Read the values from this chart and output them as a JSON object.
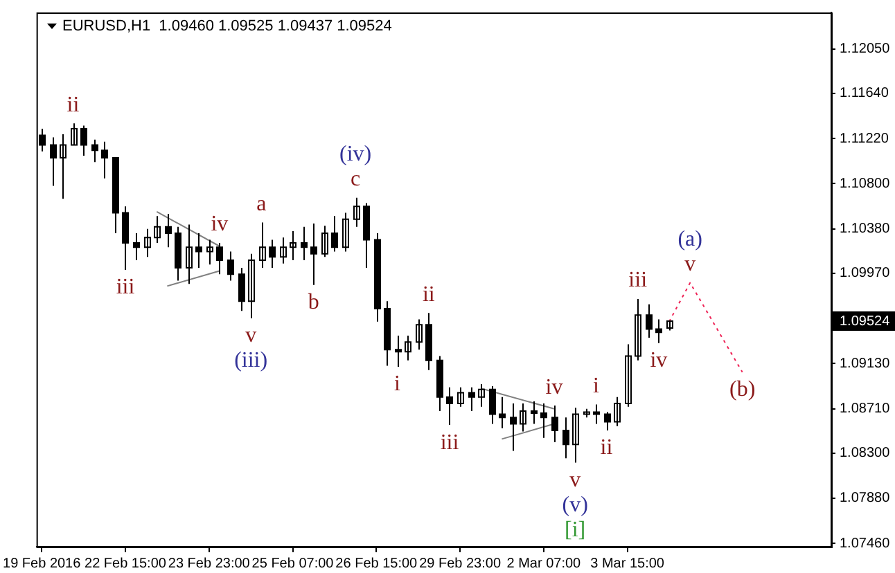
{
  "chart_data": {
    "type": "candlestick",
    "title": "EURUSD,H1  1.09460 1.09525 1.09437 1.09524",
    "color": "#000000",
    "categories": [
      "19 Feb 2016",
      null,
      null,
      null,
      null,
      null,
      null,
      null,
      "22 Feb 15:00",
      null,
      null,
      null,
      null,
      null,
      null,
      null,
      "23 Feb 23:00",
      null,
      null,
      null,
      null,
      null,
      null,
      null,
      "25 Feb 07:00",
      null,
      null,
      null,
      null,
      null,
      null,
      null,
      "26 Feb 15:00",
      null,
      null,
      null,
      null,
      null,
      null,
      null,
      "29 Feb 23:00",
      null,
      null,
      null,
      null,
      null,
      null,
      null,
      "2 Mar 07:00",
      null,
      null,
      null,
      null,
      null,
      null,
      null,
      "3 Mar 15:00",
      null,
      null,
      null,
      null,
      null,
      null,
      null,
      null,
      null,
      null,
      null,
      null,
      null,
      null,
      null,
      null,
      null,
      null,
      null
    ],
    "ohlc": [
      [
        1.1125,
        1.1131,
        1.111,
        1.1116
      ],
      [
        1.1116,
        1.1123,
        1.1078,
        1.1104
      ],
      [
        1.1104,
        1.1126,
        1.1066,
        1.1116
      ],
      [
        1.1116,
        1.1136,
        1.1116,
        1.1131
      ],
      [
        1.1131,
        1.1134,
        1.1106,
        1.1116
      ],
      [
        1.1116,
        1.1121,
        1.11,
        1.1111
      ],
      [
        1.1111,
        1.1119,
        1.1085,
        1.1104
      ],
      [
        1.1104,
        1.1104,
        1.1034,
        1.1053
      ],
      [
        1.1053,
        1.1059,
        1.1,
        1.1025
      ],
      [
        1.1025,
        1.1034,
        1.1009,
        1.1021
      ],
      [
        1.1021,
        1.1038,
        1.1012,
        1.103
      ],
      [
        1.103,
        1.105,
        1.1025,
        1.104
      ],
      [
        1.104,
        1.1052,
        1.1021,
        1.1034
      ],
      [
        1.1034,
        1.104,
        1.099,
        1.1002
      ],
      [
        1.1002,
        1.1042,
        1.0987,
        1.1021
      ],
      [
        1.1021,
        1.1034,
        1.1002,
        1.1017
      ],
      [
        1.1017,
        1.1028,
        1.1005,
        1.1021
      ],
      [
        1.1021,
        1.1025,
        1.0996,
        1.1009
      ],
      [
        1.1009,
        1.1017,
        1.099,
        1.0996
      ],
      [
        1.0996,
        1.1002,
        1.0962,
        1.0971
      ],
      [
        1.0971,
        1.1015,
        1.0955,
        1.1009
      ],
      [
        1.1009,
        1.1044,
        1.1002,
        1.1021
      ],
      [
        1.1021,
        1.1028,
        1.1002,
        1.1012
      ],
      [
        1.1012,
        1.103,
        1.1006,
        1.1021
      ],
      [
        1.1021,
        1.1036,
        1.1009,
        1.1025
      ],
      [
        1.1025,
        1.104,
        1.1009,
        1.1021
      ],
      [
        1.1021,
        1.1043,
        1.0986,
        1.1015
      ],
      [
        1.1015,
        1.1041,
        1.1012,
        1.1034
      ],
      [
        1.1034,
        1.105,
        1.1017,
        1.1021
      ],
      [
        1.1021,
        1.1053,
        1.1017,
        1.1047
      ],
      [
        1.1047,
        1.1067,
        1.104,
        1.1059
      ],
      [
        1.1059,
        1.1062,
        1.1002,
        1.1028
      ],
      [
        1.1028,
        1.1034,
        1.0952,
        1.0964
      ],
      [
        1.0964,
        1.0971,
        1.0911,
        1.0926
      ],
      [
        1.0926,
        1.0939,
        1.091,
        1.0924
      ],
      [
        1.0924,
        1.0939,
        1.0916,
        1.0933
      ],
      [
        1.0933,
        1.0954,
        1.0926,
        1.0949
      ],
      [
        1.0949,
        1.096,
        1.0907,
        1.0916
      ],
      [
        1.0916,
        1.092,
        1.0869,
        1.0882
      ],
      [
        1.0882,
        1.0891,
        1.0856,
        1.0876
      ],
      [
        1.0876,
        1.0891,
        1.0873,
        1.0886
      ],
      [
        1.0886,
        1.0891,
        1.0869,
        1.0882
      ],
      [
        1.0882,
        1.0894,
        1.0873,
        1.0889
      ],
      [
        1.0889,
        1.0892,
        1.0857,
        1.0866
      ],
      [
        1.0866,
        1.0882,
        1.0853,
        1.0863
      ],
      [
        1.0863,
        1.0876,
        1.0832,
        1.0857
      ],
      [
        1.0857,
        1.0876,
        1.085,
        1.0869
      ],
      [
        1.0869,
        1.0878,
        1.0857,
        1.0867
      ],
      [
        1.0867,
        1.0876,
        1.0844,
        1.0863
      ],
      [
        1.0863,
        1.0874,
        1.084,
        1.0851
      ],
      [
        1.0851,
        1.0863,
        1.0825,
        1.0838
      ],
      [
        1.0838,
        1.0872,
        1.0821,
        1.0866
      ],
      [
        1.0866,
        1.0871,
        1.0863,
        1.0868
      ],
      [
        1.0868,
        1.0875,
        1.0857,
        1.0866
      ],
      [
        1.0866,
        1.0868,
        1.0851,
        1.0859
      ],
      [
        1.0859,
        1.0882,
        1.0855,
        1.0876
      ],
      [
        1.0876,
        1.0931,
        1.0873,
        1.092
      ],
      [
        1.092,
        1.0973,
        1.0916,
        1.0958
      ],
      [
        1.0958,
        1.0968,
        1.0937,
        1.0945
      ],
      [
        1.0945,
        1.0954,
        1.0932,
        1.0942
      ],
      [
        1.0946,
        1.09525,
        1.09437,
        1.09524
      ],
      null,
      null,
      null,
      null,
      null,
      null,
      null,
      null,
      null,
      null,
      null,
      null,
      null,
      null,
      null
    ],
    "series": [
      {
        "type": "line",
        "color": "#ee2255",
        "line_style": "dotted",
        "values": [
          null,
          null,
          null,
          null,
          null,
          null,
          null,
          null,
          null,
          null,
          null,
          null,
          null,
          null,
          null,
          null,
          null,
          null,
          null,
          null,
          null,
          null,
          null,
          null,
          null,
          null,
          null,
          null,
          null,
          null,
          null,
          null,
          null,
          null,
          null,
          null,
          null,
          null,
          null,
          null,
          null,
          null,
          null,
          null,
          null,
          null,
          null,
          null,
          null,
          null,
          null,
          null,
          null,
          null,
          null,
          null,
          null,
          null,
          null,
          null,
          1.0952,
          null,
          1.0988,
          null,
          null,
          null,
          null,
          1.0905,
          null,
          null,
          null,
          null,
          null,
          null,
          null,
          null
        ]
      },
      {
        "type": "line",
        "color": "#808080",
        "line_style": "solid",
        "values": [
          null,
          null,
          null,
          null,
          null,
          null,
          null,
          null,
          null,
          null,
          null,
          1.1054,
          null,
          null,
          null,
          null,
          null,
          1.1022,
          null,
          null,
          null,
          null,
          null,
          null,
          null,
          null,
          null,
          null,
          null,
          null,
          null,
          null,
          null,
          null,
          null,
          null,
          null,
          null,
          null,
          null,
          null,
          null,
          null,
          null,
          null,
          null,
          null,
          null,
          null,
          null,
          null,
          null,
          null,
          null,
          null,
          null,
          null,
          null,
          null,
          null,
          null,
          null,
          null,
          null,
          null,
          null,
          null,
          null,
          null,
          null,
          null,
          null,
          null,
          null,
          null,
          null
        ]
      },
      {
        "type": "line",
        "color": "#808080",
        "line_style": "solid",
        "values": [
          null,
          null,
          null,
          null,
          null,
          null,
          null,
          null,
          null,
          null,
          null,
          null,
          1.0985,
          null,
          null,
          null,
          null,
          1.0999,
          null,
          null,
          null,
          null,
          null,
          null,
          null,
          null,
          null,
          null,
          null,
          null,
          null,
          null,
          null,
          null,
          null,
          null,
          null,
          null,
          null,
          null,
          null,
          null,
          null,
          null,
          null,
          null,
          null,
          null,
          null,
          null,
          null,
          null,
          null,
          null,
          null,
          null,
          null,
          null,
          null,
          null,
          null,
          null,
          null,
          null,
          null,
          null,
          null,
          null,
          null,
          null,
          null,
          null,
          null,
          null,
          null,
          null
        ]
      },
      {
        "type": "line",
        "color": "#808080",
        "line_style": "solid",
        "values": [
          null,
          null,
          null,
          null,
          null,
          null,
          null,
          null,
          null,
          null,
          null,
          null,
          null,
          null,
          null,
          null,
          null,
          null,
          null,
          null,
          null,
          null,
          null,
          null,
          null,
          null,
          null,
          null,
          null,
          null,
          null,
          null,
          null,
          null,
          null,
          null,
          null,
          null,
          null,
          null,
          null,
          null,
          1.089,
          null,
          null,
          null,
          null,
          null,
          null,
          1.0871,
          null,
          null,
          null,
          null,
          null,
          null,
          null,
          null,
          null,
          null,
          null,
          null,
          null,
          null,
          null,
          null,
          null,
          null,
          null,
          null,
          null,
          null,
          null,
          null,
          null,
          null
        ]
      },
      {
        "type": "line",
        "color": "#808080",
        "line_style": "solid",
        "values": [
          null,
          null,
          null,
          null,
          null,
          null,
          null,
          null,
          null,
          null,
          null,
          null,
          null,
          null,
          null,
          null,
          null,
          null,
          null,
          null,
          null,
          null,
          null,
          null,
          null,
          null,
          null,
          null,
          null,
          null,
          null,
          null,
          null,
          null,
          null,
          null,
          null,
          null,
          null,
          null,
          null,
          null,
          null,
          null,
          1.0843,
          null,
          null,
          null,
          null,
          1.0857,
          null,
          null,
          null,
          null,
          null,
          null,
          null,
          null,
          null,
          null,
          null,
          null,
          null,
          null,
          null,
          null,
          null,
          null,
          null,
          null,
          null,
          null,
          null,
          null,
          null,
          null
        ]
      }
    ],
    "ylim": [
      1.0743,
      1.1239
    ],
    "yticks": [
      {
        "value": 1.1205,
        "label": "1.12050"
      },
      {
        "value": 1.1164,
        "label": "1.11640"
      },
      {
        "value": 1.1122,
        "label": "1.11220"
      },
      {
        "value": 1.108,
        "label": "1.10800"
      },
      {
        "value": 1.1038,
        "label": "1.10380"
      },
      {
        "value": 1.0997,
        "label": "1.09970"
      },
      {
        "value": 1.09524,
        "label": "1.09524"
      },
      {
        "value": 1.0913,
        "label": "1.09130"
      },
      {
        "value": 1.0871,
        "label": "1.08710"
      },
      {
        "value": 1.083,
        "label": "1.08300"
      },
      {
        "value": 1.0788,
        "label": "1.07880"
      },
      {
        "value": 1.0746,
        "label": "1.07460"
      }
    ],
    "annotations": [
      {
        "text": "ii",
        "y": 1.1136
      },
      {
        "text": "iii",
        "y": 1.1
      },
      {
        "text": "iv",
        "y": 1.1025
      },
      {
        "text": "v",
        "y": 1.0955
      },
      {
        "text": "(iii)",
        "y": 1.0955
      },
      {
        "text": "a",
        "y": 1.1044
      },
      {
        "text": "b",
        "y": 1.0986
      },
      {
        "text": "c",
        "y": 1.1067
      },
      {
        "text": "(iv)",
        "y": 1.1067
      },
      {
        "text": "i",
        "y": 1.091
      },
      {
        "text": "ii",
        "y": 1.096
      },
      {
        "text": "iii",
        "y": 1.0856
      },
      {
        "text": "iv",
        "y": 1.0874
      },
      {
        "text": "v",
        "y": 1.0821
      },
      {
        "text": "(v)",
        "y": 1.0821
      },
      {
        "text": "[i]",
        "y": 1.0821
      },
      {
        "text": "i",
        "y": 1.0875
      },
      {
        "text": "ii",
        "y": 1.0851
      },
      {
        "text": "iii",
        "y": 1.0973
      },
      {
        "text": "iv",
        "y": 1.0932
      },
      {
        "text": "v",
        "y": 1.0988
      },
      {
        "text": "(a)",
        "y": 1.0988
      },
      {
        "text": "(b)",
        "y": 1.0905
      }
    ]
  }
}
